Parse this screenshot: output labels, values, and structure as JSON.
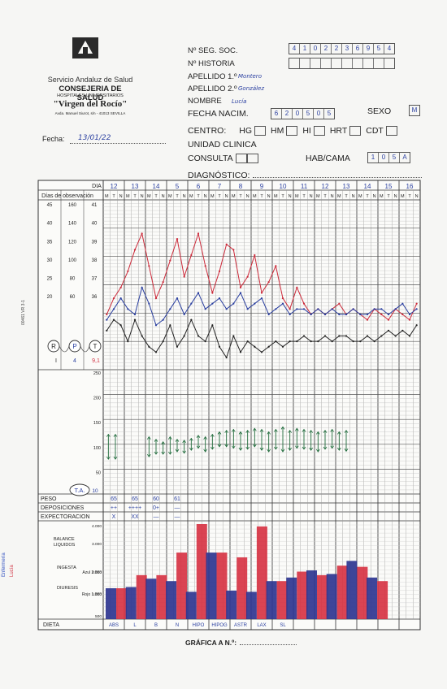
{
  "logo": {
    "caption": "JUNTA DE ANDALUCIA",
    "service": "Servicio Andaluz de Salud",
    "council": "CONSEJERIA DE SALUD",
    "hospital_group": "HOSPITALES UNIVERSITARIOS",
    "hospital_name": "\"Virgen del Rocío\"",
    "address": "Avda. Manuel Siurot, s/n - 41013 SEVILLA"
  },
  "fecha": {
    "label": "Fecha:",
    "value": "13/01/22"
  },
  "header": {
    "seg_soc_label": "Nº SEG. SOC.",
    "seg_soc_digits": [
      "4",
      "1",
      "0",
      "2",
      "2",
      "3",
      "6",
      "9",
      "5",
      "4"
    ],
    "historia_label": "Nº HISTORIA",
    "apellido1_label": "APELLIDO 1.º",
    "apellido1_value": "Montero",
    "apellido2_label": "APELLIDO 2.º",
    "apellido2_value": "González",
    "nombre_label": "NOMBRE",
    "nombre_value": "Lucía",
    "fecha_nac_label": "FECHA NACIM.",
    "fecha_nac_value": [
      "6",
      "2",
      "0",
      "5",
      "0",
      "5"
    ],
    "sexo_label": "SEXO",
    "sexo_value": "M",
    "centro_label": "CENTRO:",
    "centro_options": [
      "HG",
      "HM",
      "HI",
      "HRT",
      "CDT"
    ],
    "unidad_label": "UNIDAD CLINICA",
    "consulta_label": "CONSULTA",
    "hab_label": "HAB/CAMA",
    "hab_value": [
      "1",
      "0",
      "5",
      "A"
    ],
    "diagnostico_label": "DIAGNÓSTICO:"
  },
  "chart": {
    "dia_label": "DIA",
    "obs_label": "Días de observación",
    "days": [
      "12",
      "13",
      "14",
      "5",
      "6",
      "7",
      "8",
      "9",
      "10",
      "11",
      "12",
      "13",
      "14",
      "15",
      "16"
    ],
    "shift_labels": [
      "M",
      "T",
      "N"
    ],
    "scale_cols": {
      "resp": [
        "45",
        "40",
        "35",
        "30",
        "25",
        "20"
      ],
      "pulse": [
        "160",
        "140",
        "120",
        "100",
        "80",
        "60"
      ],
      "temp": [
        "41",
        "40",
        "39",
        "38",
        "37",
        "36"
      ]
    },
    "ta_scale": [
      "250",
      "200",
      "150",
      "100",
      "50"
    ],
    "legend": {
      "r": "R",
      "p": "P",
      "t": "T",
      "r_hw": "I",
      "p_hw": "4",
      "t_hw": "9,1"
    },
    "ta_label": "T.A.",
    "ta_hw": "10",
    "side_code": "00461   VR 3-1",
    "margin_note": "Enfermería",
    "margin_note2": "Lucía"
  },
  "chart_data": {
    "type": "line",
    "series": [
      {
        "name": "P",
        "color": "#cc2a3a",
        "values": [
          26,
          29,
          31,
          34,
          38,
          41,
          35,
          29,
          32,
          36,
          40,
          33,
          37,
          41,
          35,
          30,
          34,
          39,
          38,
          31,
          33,
          37,
          30,
          32,
          35,
          29,
          27,
          31,
          28,
          26,
          27,
          26,
          27,
          28,
          26,
          27,
          26,
          25,
          27,
          26,
          25,
          27,
          26,
          25,
          28
        ]
      },
      {
        "name": "T",
        "color": "#2a3fa0",
        "values": [
          25,
          27,
          29,
          27,
          26,
          31,
          28,
          24,
          25,
          27,
          29,
          26,
          28,
          30,
          27,
          28,
          29,
          27,
          28,
          30,
          27,
          28,
          29,
          26,
          27,
          28,
          26,
          27,
          27,
          26,
          27,
          26,
          27,
          26,
          26,
          27,
          26,
          26,
          27,
          27,
          26,
          27,
          28,
          26,
          27
        ]
      },
      {
        "name": "R",
        "color": "#222222",
        "values": [
          23,
          25,
          24,
          21,
          25,
          22,
          20,
          19,
          21,
          24,
          20,
          22,
          25,
          22,
          21,
          24,
          20,
          18,
          22,
          19,
          21,
          20,
          19,
          20,
          21,
          20,
          21,
          21,
          22,
          21,
          21,
          22,
          21,
          22,
          22,
          21,
          21,
          22,
          21,
          22,
          23,
          22,
          23,
          22,
          24
        ]
      }
    ],
    "ta_pairs": [
      [
        120,
        70
      ],
      [
        120,
        70
      ],
      null,
      null,
      null,
      null,
      [
        115,
        75
      ],
      [
        110,
        80
      ],
      [
        105,
        80
      ],
      [
        115,
        80
      ],
      [
        110,
        85
      ],
      [
        108,
        82
      ],
      [
        112,
        88
      ],
      [
        118,
        92
      ],
      [
        115,
        85
      ],
      [
        120,
        90
      ],
      [
        125,
        95
      ],
      [
        128,
        95
      ],
      [
        130,
        92
      ],
      [
        125,
        88
      ],
      [
        128,
        90
      ],
      [
        132,
        95
      ],
      [
        130,
        88
      ],
      [
        125,
        85
      ],
      [
        130,
        90
      ],
      [
        135,
        85
      ],
      [
        128,
        88
      ],
      [
        132,
        92
      ],
      [
        130,
        90
      ],
      [
        128,
        88
      ],
      [
        125,
        85
      ],
      [
        128,
        90
      ],
      [
        130,
        92
      ],
      [
        125,
        88
      ],
      [
        128,
        86
      ]
    ]
  },
  "rows": {
    "peso_label": "PESO",
    "peso_values": [
      "65",
      "65",
      "60",
      "61"
    ],
    "deposiciones_label": "DEPOSICIONES",
    "deposiciones_values": [
      "++",
      "++++",
      "0+",
      "—"
    ],
    "expectoracion_label": "EXPECTORACION",
    "expectoracion_values": [
      "X",
      "XX",
      "—",
      "—"
    ],
    "balance_label": "BALANCE LIQUIDOS",
    "ingesta_label": "INGESTA",
    "diuresis_label": "DIURESIS",
    "azul_label": "Azul 2.000",
    "rojo_label": "Rojo 1.000",
    "balance_scale": [
      "4.000",
      "3.000",
      "2.000",
      "1.000",
      "500"
    ],
    "dieta_label": "DIETA",
    "dieta_values": [
      "ABS",
      "L",
      "B",
      "N",
      "HIPO",
      "HIPOG",
      "ASTR",
      "LAX",
      "SL"
    ]
  },
  "balance_data": {
    "ingesta_blue": [
      1300,
      1350,
      1700,
      1600,
      1150,
      2800,
      1200,
      1150,
      1600,
      1750,
      2050,
      1900,
      2450,
      1750
    ],
    "diuresis_red": [
      1300,
      1850,
      1850,
      2800,
      4000,
      2800,
      2600,
      3900,
      1600,
      2000,
      1850,
      2250,
      2200,
      1600
    ]
  },
  "footer": {
    "label": "GRÁFICA A N.º:"
  }
}
